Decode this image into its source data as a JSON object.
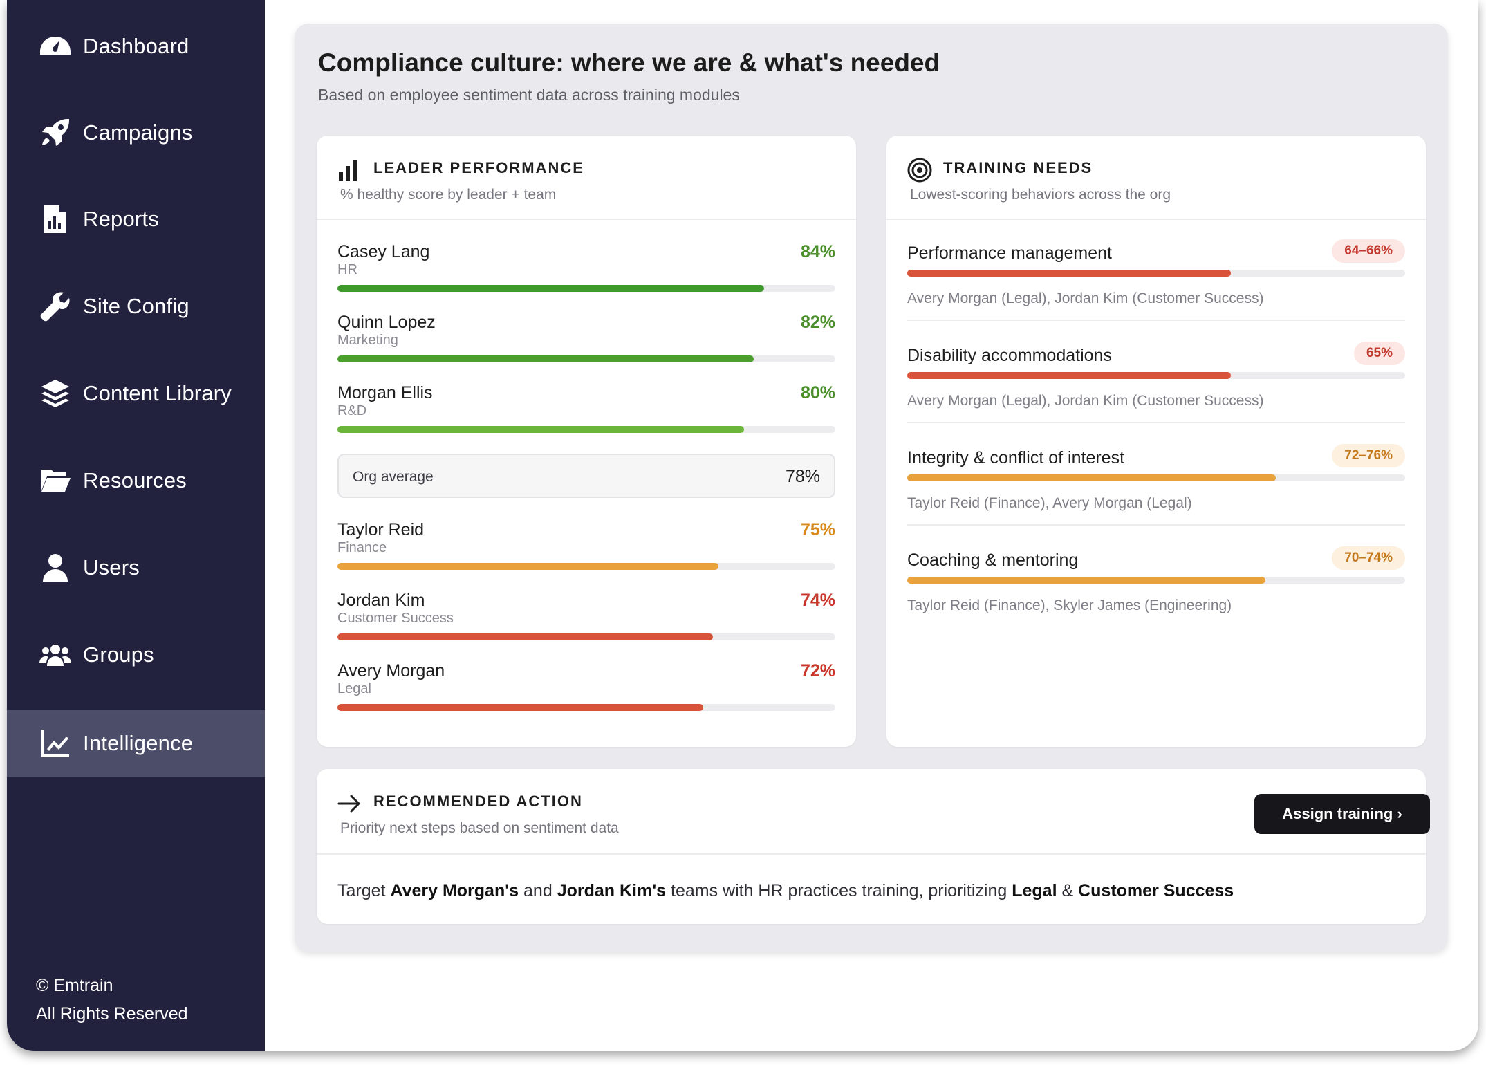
{
  "sidebar": {
    "items": [
      {
        "label": "Dashboard",
        "icon": "dashboard-gauge-icon",
        "active": false
      },
      {
        "label": "Campaigns",
        "icon": "rocket-icon",
        "active": false
      },
      {
        "label": "Reports",
        "icon": "report-file-icon",
        "active": false
      },
      {
        "label": "Site Config",
        "icon": "wrench-icon",
        "active": false
      },
      {
        "label": "Content Library",
        "icon": "layers-icon",
        "active": false
      },
      {
        "label": "Resources",
        "icon": "folder-open-icon",
        "active": false
      },
      {
        "label": "Users",
        "icon": "user-icon",
        "active": false
      },
      {
        "label": "Groups",
        "icon": "users-group-icon",
        "active": false
      },
      {
        "label": "Intelligence",
        "icon": "line-chart-icon",
        "active": true
      }
    ],
    "footer_line1": "© Emtrain",
    "footer_line2": "All Rights Reserved"
  },
  "main": {
    "title": "Compliance culture: where we are & what's needed",
    "subtitle": "Based on employee sentiment data across training modules"
  },
  "leader_panel": {
    "title": "LEADER PERFORMANCE",
    "subtitle": "% healthy score by leader + team",
    "leaders_top": [
      {
        "name": "Casey Lang",
        "team": "HR",
        "pct_label": "84%",
        "value": 84,
        "color": "#3f9a2c"
      },
      {
        "name": "Quinn Lopez",
        "team": "Marketing",
        "pct_label": "82%",
        "value": 82,
        "color": "#4a9f2d"
      },
      {
        "name": "Morgan Ellis",
        "team": "R&D",
        "pct_label": "80%",
        "value": 80,
        "color": "#6bb53b"
      }
    ],
    "org_average_label": "Org average",
    "org_average_value": "78%",
    "leaders_bottom": [
      {
        "name": "Taylor Reid",
        "team": "Finance",
        "pct_label": "75%",
        "value": 75,
        "color": "#e9a23b"
      },
      {
        "name": "Jordan Kim",
        "team": "Customer Success",
        "pct_label": "74%",
        "value": 74,
        "color": "#d9533a"
      },
      {
        "name": "Avery Morgan",
        "team": "Legal",
        "pct_label": "72%",
        "value": 72,
        "color": "#d9533a"
      }
    ]
  },
  "needs_panel": {
    "title": "TRAINING NEEDS",
    "subtitle": "Lowest-scoring behaviors across the org",
    "items": [
      {
        "title": "Performance management",
        "badge": "64–66%",
        "fill_pct": 65,
        "color": "#d9533a",
        "badge_bg": "#fde7e5",
        "badge_fg": "#c23a2e",
        "people": "Avery Morgan (Legal), Jordan Kim (Customer Success)"
      },
      {
        "title": "Disability accommodations",
        "badge": "65%",
        "fill_pct": 65,
        "color": "#d9533a",
        "badge_bg": "#fde7e5",
        "badge_fg": "#c23a2e",
        "people": "Avery Morgan (Legal), Jordan Kim (Customer Success)"
      },
      {
        "title": "Integrity & conflict of interest",
        "badge": "72–76%",
        "fill_pct": 74,
        "color": "#e9a23b",
        "badge_bg": "#fdf0df",
        "badge_fg": "#c47a1c",
        "people": "Taylor Reid (Finance), Avery Morgan (Legal)"
      },
      {
        "title": "Coaching & mentoring",
        "badge": "70–74%",
        "fill_pct": 72,
        "color": "#e9a23b",
        "badge_bg": "#fdf0df",
        "badge_fg": "#c47a1c",
        "people": "Taylor Reid (Finance), Skyler James (Engineering)"
      }
    ]
  },
  "action_panel": {
    "title": "RECOMMENDED ACTION",
    "subtitle": "Priority next steps based on sentiment data",
    "button_label": "Assign training ›",
    "body_parts": {
      "p1": "Target ",
      "b1": "Avery Morgan's",
      "p2": " and ",
      "b2": "Jordan Kim's",
      "p3": " teams with HR practices training, prioritizing ",
      "b3": "Legal",
      "p4": " & ",
      "b4": "Customer Success"
    }
  }
}
